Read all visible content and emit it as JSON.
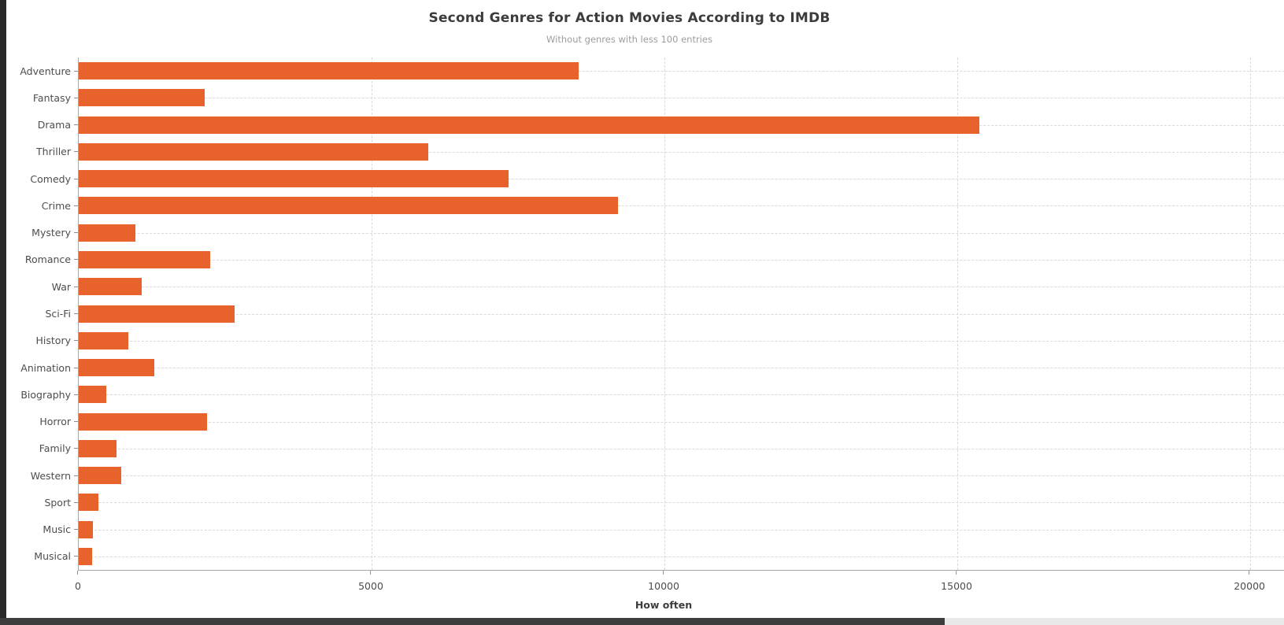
{
  "chart_data": {
    "type": "bar",
    "orientation": "horizontal",
    "title": "Second Genres for Action Movies According to IMDB",
    "subtitle": "Without genres with less 100 entries",
    "xlabel": "How often",
    "ylabel": "",
    "categories": [
      "Adventure",
      "Fantasy",
      "Drama",
      "Thriller",
      "Comedy",
      "Crime",
      "Mystery",
      "Romance",
      "War",
      "Sci-Fi",
      "History",
      "Animation",
      "Biography",
      "Horror",
      "Family",
      "Western",
      "Sport",
      "Music",
      "Musical"
    ],
    "values": [
      8535,
      2150,
      15380,
      5970,
      7340,
      9210,
      970,
      2245,
      1080,
      2660,
      850,
      1290,
      470,
      2190,
      650,
      730,
      330,
      240,
      230
    ],
    "x_ticks": [
      0,
      5000,
      10000,
      15000,
      20000
    ],
    "xlim": [
      0,
      20590
    ],
    "grid": "dashed-vertical-and-horizontal",
    "legend": false,
    "bar_color": "#e8632c",
    "axis_color": "#a6a6a6",
    "grid_color": "#d9d9d9",
    "title_color": "#3c3c3c",
    "subtitle_color": "#9c9c9c",
    "tick_label_color": "#4d4d4d"
  },
  "frame": {
    "left_edge_color": "#282828",
    "scrollbar_track_color": "#e9e9e9",
    "scrollbar_thumb_color": "#3d3d3d"
  }
}
